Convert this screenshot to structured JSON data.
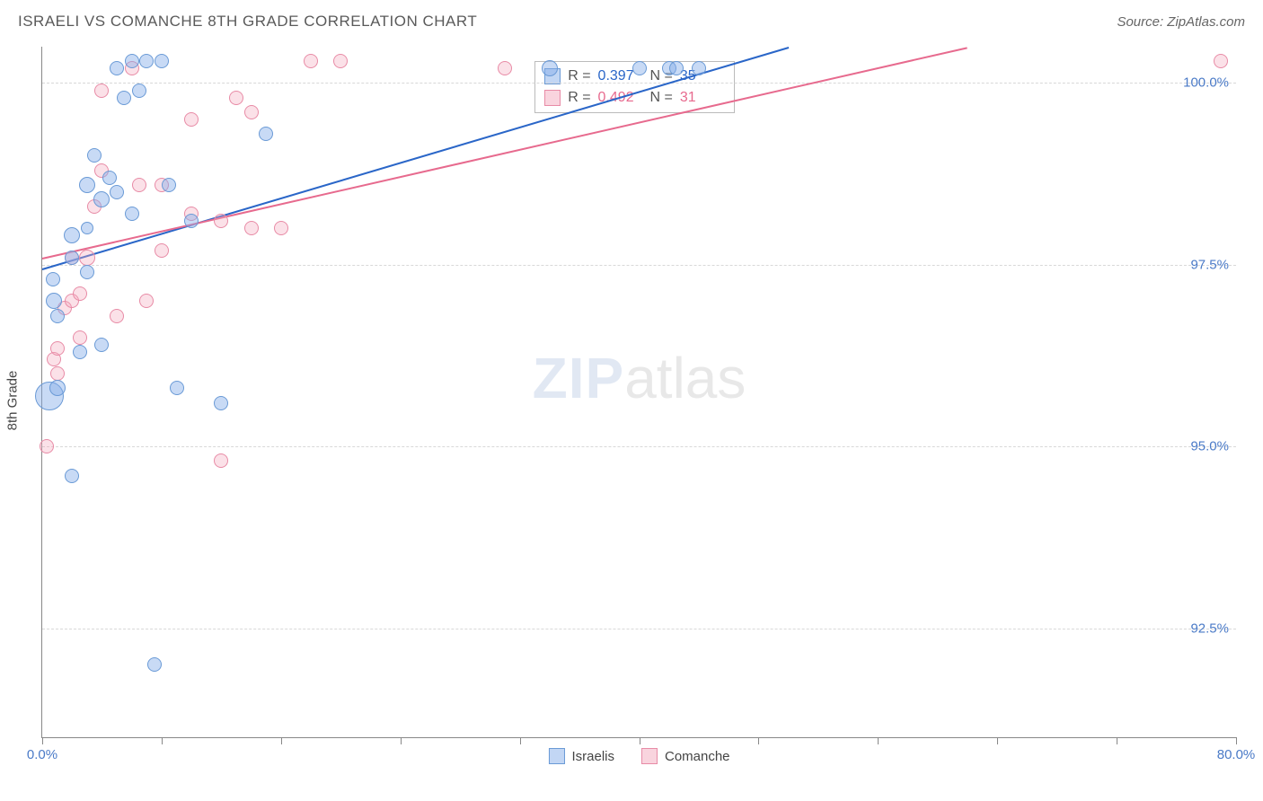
{
  "title": "ISRAELI VS COMANCHE 8TH GRADE CORRELATION CHART",
  "source": "Source: ZipAtlas.com",
  "yaxis_title": "8th Grade",
  "watermark_a": "ZIP",
  "watermark_b": "atlas",
  "chart": {
    "type": "scatter",
    "xlim": [
      0,
      80
    ],
    "ylim": [
      91,
      100.5
    ],
    "xtick_positions": [
      0,
      8,
      16,
      24,
      32,
      40,
      48,
      56,
      64,
      72,
      80
    ],
    "xtick_labels": {
      "0": "0.0%",
      "80": "80.0%"
    },
    "ytick_positions": [
      92.5,
      95.0,
      97.5,
      100.0
    ],
    "ytick_labels": [
      "92.5%",
      "95.0%",
      "97.5%",
      "100.0%"
    ],
    "background_color": "#ffffff",
    "grid_color": "#d8d8d8",
    "axis_color": "#888888"
  },
  "series": {
    "blue": {
      "name": "Israelis",
      "color_fill": "rgba(133,173,233,0.45)",
      "color_stroke": "#6a9ad6",
      "trend_color": "#2a66c8",
      "r_value": "0.397",
      "n_value": "35",
      "trend": {
        "x1": 0,
        "y1": 97.45,
        "x2": 50,
        "y2": 100.5
      },
      "points": [
        {
          "x": 0.5,
          "y": 95.7,
          "r": 16
        },
        {
          "x": 0.8,
          "y": 97.0,
          "r": 9
        },
        {
          "x": 0.7,
          "y": 97.3,
          "r": 8
        },
        {
          "x": 1.0,
          "y": 96.8,
          "r": 8
        },
        {
          "x": 1.0,
          "y": 95.8,
          "r": 9
        },
        {
          "x": 2.0,
          "y": 97.6,
          "r": 8
        },
        {
          "x": 2.0,
          "y": 97.9,
          "r": 9
        },
        {
          "x": 2.0,
          "y": 94.6,
          "r": 8
        },
        {
          "x": 3.0,
          "y": 97.4,
          "r": 8
        },
        {
          "x": 3.0,
          "y": 98.0,
          "r": 7
        },
        {
          "x": 3.0,
          "y": 98.6,
          "r": 9
        },
        {
          "x": 3.5,
          "y": 99.0,
          "r": 8
        },
        {
          "x": 4.0,
          "y": 98.4,
          "r": 9
        },
        {
          "x": 4.5,
          "y": 98.7,
          "r": 8
        },
        {
          "x": 5.0,
          "y": 98.5,
          "r": 8
        },
        {
          "x": 5.5,
          "y": 99.8,
          "r": 8
        },
        {
          "x": 5.0,
          "y": 100.2,
          "r": 8
        },
        {
          "x": 6.0,
          "y": 100.3,
          "r": 8
        },
        {
          "x": 6.5,
          "y": 99.9,
          "r": 8
        },
        {
          "x": 7.0,
          "y": 100.3,
          "r": 8
        },
        {
          "x": 8.0,
          "y": 100.3,
          "r": 8
        },
        {
          "x": 9.0,
          "y": 95.8,
          "r": 8
        },
        {
          "x": 8.5,
          "y": 98.6,
          "r": 8
        },
        {
          "x": 7.5,
          "y": 92.0,
          "r": 8
        },
        {
          "x": 10.0,
          "y": 98.1,
          "r": 8
        },
        {
          "x": 12.0,
          "y": 95.6,
          "r": 8
        },
        {
          "x": 15.0,
          "y": 99.3,
          "r": 8
        },
        {
          "x": 6.0,
          "y": 98.2,
          "r": 8
        },
        {
          "x": 4.0,
          "y": 96.4,
          "r": 8
        },
        {
          "x": 2.5,
          "y": 96.3,
          "r": 8
        },
        {
          "x": 34.0,
          "y": 100.2,
          "r": 9
        },
        {
          "x": 40.0,
          "y": 100.2,
          "r": 8
        },
        {
          "x": 42.0,
          "y": 100.2,
          "r": 8
        },
        {
          "x": 42.5,
          "y": 100.2,
          "r": 8
        },
        {
          "x": 44.0,
          "y": 100.2,
          "r": 8
        }
      ]
    },
    "pink": {
      "name": "Comanche",
      "color_fill": "rgba(244,170,190,0.35)",
      "color_stroke": "#e88ba6",
      "trend_color": "#e76a8e",
      "r_value": "0.492",
      "n_value": "31",
      "trend": {
        "x1": 0,
        "y1": 97.6,
        "x2": 62,
        "y2": 100.5
      },
      "points": [
        {
          "x": 0.3,
          "y": 95.0,
          "r": 8
        },
        {
          "x": 0.8,
          "y": 96.2,
          "r": 8
        },
        {
          "x": 1.0,
          "y": 96.0,
          "r": 8
        },
        {
          "x": 1.5,
          "y": 96.9,
          "r": 8
        },
        {
          "x": 2.0,
          "y": 97.0,
          "r": 8
        },
        {
          "x": 2.5,
          "y": 96.5,
          "r": 8
        },
        {
          "x": 2.0,
          "y": 97.6,
          "r": 8
        },
        {
          "x": 2.5,
          "y": 97.1,
          "r": 8
        },
        {
          "x": 3.0,
          "y": 97.6,
          "r": 9
        },
        {
          "x": 1.0,
          "y": 96.35,
          "r": 8
        },
        {
          "x": 3.5,
          "y": 98.3,
          "r": 8
        },
        {
          "x": 4.0,
          "y": 99.9,
          "r": 8
        },
        {
          "x": 4.0,
          "y": 98.8,
          "r": 8
        },
        {
          "x": 5.0,
          "y": 96.8,
          "r": 8
        },
        {
          "x": 6.0,
          "y": 100.2,
          "r": 8
        },
        {
          "x": 6.5,
          "y": 98.6,
          "r": 8
        },
        {
          "x": 7.0,
          "y": 97.0,
          "r": 8
        },
        {
          "x": 8.0,
          "y": 97.7,
          "r": 8
        },
        {
          "x": 8.0,
          "y": 98.6,
          "r": 8
        },
        {
          "x": 10.0,
          "y": 98.2,
          "r": 8
        },
        {
          "x": 10.0,
          "y": 99.5,
          "r": 8
        },
        {
          "x": 12.0,
          "y": 98.1,
          "r": 8
        },
        {
          "x": 12.0,
          "y": 94.8,
          "r": 8
        },
        {
          "x": 13.0,
          "y": 99.8,
          "r": 8
        },
        {
          "x": 14.0,
          "y": 98.0,
          "r": 8
        },
        {
          "x": 14.0,
          "y": 99.6,
          "r": 8
        },
        {
          "x": 16.0,
          "y": 98.0,
          "r": 8
        },
        {
          "x": 18.0,
          "y": 100.3,
          "r": 8
        },
        {
          "x": 20.0,
          "y": 100.3,
          "r": 8
        },
        {
          "x": 31.0,
          "y": 100.2,
          "r": 8
        },
        {
          "x": 79.0,
          "y": 100.3,
          "r": 8
        }
      ]
    }
  },
  "stats_labels": {
    "r": "R =",
    "n": "N ="
  }
}
